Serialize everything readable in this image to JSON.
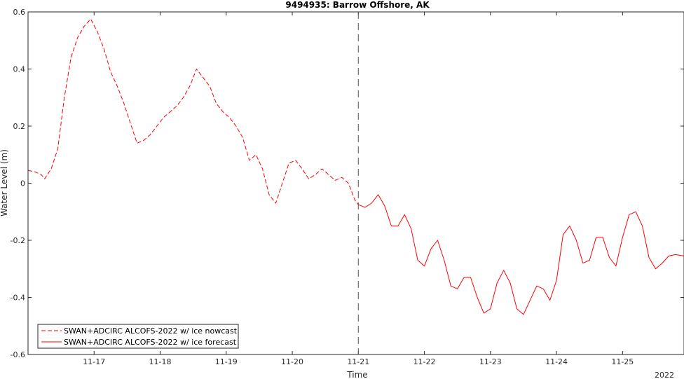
{
  "chart_data": {
    "type": "line",
    "title": "9494935: Barrow Offshore, AK",
    "xlabel": "Time",
    "ylabel": "Water Level (m)",
    "year_label": "2022",
    "x_unit": "days since 2022-11-16 00:00",
    "xlim": [
      0.0,
      9.93
    ],
    "ylim": [
      -0.6,
      0.6
    ],
    "yticks": [
      -0.6,
      -0.4,
      -0.2,
      0,
      0.2,
      0.4,
      0.6
    ],
    "ytick_labels": [
      "-0.6",
      "-0.4",
      "-0.2",
      "0",
      "0.2",
      "0.4",
      "0.6"
    ],
    "xticks": [
      1,
      2,
      3,
      4,
      5,
      6,
      7,
      8,
      9
    ],
    "xtick_labels": [
      "11-17",
      "11-18",
      "11-19",
      "11-20",
      "11-21",
      "11-22",
      "11-23",
      "11-24",
      "11-25"
    ],
    "nowcast_divider_x": 5,
    "grid": false,
    "legend_position": "bottom-left",
    "series": [
      {
        "name": "SWAN+ADCIRC ALCOFS-2022 w/ ice nowcast",
        "color": "#ff0000",
        "style": "dashed",
        "x": [
          0.0,
          0.1,
          0.2,
          0.25,
          0.35,
          0.45,
          0.55,
          0.65,
          0.75,
          0.85,
          0.95,
          1.05,
          1.15,
          1.25,
          1.35,
          1.45,
          1.55,
          1.65,
          1.75,
          1.85,
          1.95,
          2.05,
          2.15,
          2.25,
          2.35,
          2.45,
          2.55,
          2.65,
          2.75,
          2.85,
          2.95,
          3.05,
          3.15,
          3.25,
          3.35,
          3.45,
          3.55,
          3.65,
          3.75,
          3.85,
          3.95,
          4.05,
          4.15,
          4.25,
          4.35,
          4.45,
          4.55,
          4.65,
          4.75,
          4.85,
          4.95,
          5.0
        ],
        "y": [
          0.045,
          0.04,
          0.03,
          0.015,
          0.05,
          0.12,
          0.3,
          0.44,
          0.51,
          0.55,
          0.575,
          0.53,
          0.47,
          0.39,
          0.34,
          0.28,
          0.21,
          0.14,
          0.15,
          0.17,
          0.2,
          0.23,
          0.25,
          0.27,
          0.3,
          0.34,
          0.4,
          0.37,
          0.34,
          0.28,
          0.25,
          0.23,
          0.2,
          0.16,
          0.08,
          0.1,
          0.05,
          -0.04,
          -0.07,
          0.0,
          0.07,
          0.08,
          0.05,
          0.015,
          0.03,
          0.05,
          0.03,
          0.01,
          0.02,
          0.0,
          -0.06,
          -0.075
        ]
      },
      {
        "name": "SWAN+ADCIRC ALCOFS-2022 w/ ice forecast",
        "color": "#ff0000",
        "style": "solid",
        "x": [
          5.0,
          5.1,
          5.2,
          5.3,
          5.4,
          5.5,
          5.6,
          5.7,
          5.8,
          5.9,
          6.0,
          6.1,
          6.2,
          6.3,
          6.4,
          6.5,
          6.6,
          6.7,
          6.8,
          6.9,
          7.0,
          7.1,
          7.2,
          7.3,
          7.4,
          7.5,
          7.6,
          7.7,
          7.8,
          7.9,
          8.0,
          8.1,
          8.2,
          8.3,
          8.4,
          8.5,
          8.6,
          8.7,
          8.8,
          8.9,
          9.0,
          9.1,
          9.2,
          9.3,
          9.4,
          9.5,
          9.6,
          9.7,
          9.8,
          9.93
        ],
        "y": [
          -0.075,
          -0.085,
          -0.07,
          -0.04,
          -0.08,
          -0.15,
          -0.15,
          -0.11,
          -0.16,
          -0.27,
          -0.29,
          -0.23,
          -0.2,
          -0.27,
          -0.36,
          -0.37,
          -0.33,
          -0.33,
          -0.4,
          -0.455,
          -0.44,
          -0.35,
          -0.305,
          -0.35,
          -0.44,
          -0.46,
          -0.41,
          -0.36,
          -0.37,
          -0.41,
          -0.34,
          -0.18,
          -0.15,
          -0.2,
          -0.28,
          -0.27,
          -0.19,
          -0.19,
          -0.26,
          -0.29,
          -0.19,
          -0.11,
          -0.1,
          -0.15,
          -0.26,
          -0.3,
          -0.28,
          -0.255,
          -0.25,
          -0.255
        ]
      }
    ]
  }
}
